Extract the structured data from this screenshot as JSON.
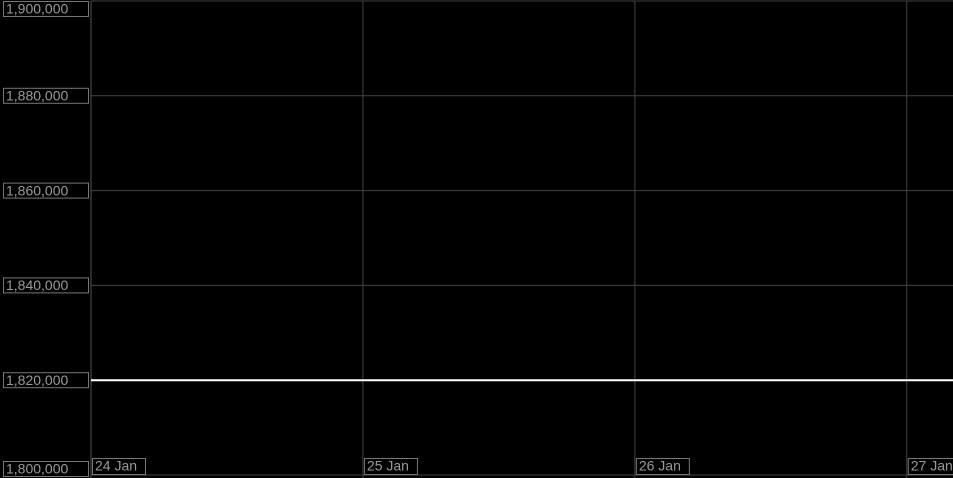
{
  "chart_data": {
    "type": "line",
    "series": [
      {
        "color": "#ffffff",
        "x": [
          24,
          27.17
        ],
        "values": [
          1820000,
          1820000
        ]
      }
    ],
    "xlim": [
      24,
      27.17
    ],
    "xticks": [
      {
        "value": 24,
        "label": "24 Jan"
      },
      {
        "value": 25,
        "label": "25 Jan"
      },
      {
        "value": 26,
        "label": "26 Jan"
      },
      {
        "value": 27,
        "label": "27 Jan"
      }
    ],
    "ylim": [
      1800000,
      1900000
    ],
    "yticks": [
      {
        "value": 1800000,
        "label": "1,800,000"
      },
      {
        "value": 1820000,
        "label": "1,820,000"
      },
      {
        "value": 1840000,
        "label": "1,840,000"
      },
      {
        "value": 1860000,
        "label": "1,860,000"
      },
      {
        "value": 1880000,
        "label": "1,880,000"
      },
      {
        "value": 1900000,
        "label": "1,900,000"
      }
    ],
    "grid": true
  }
}
